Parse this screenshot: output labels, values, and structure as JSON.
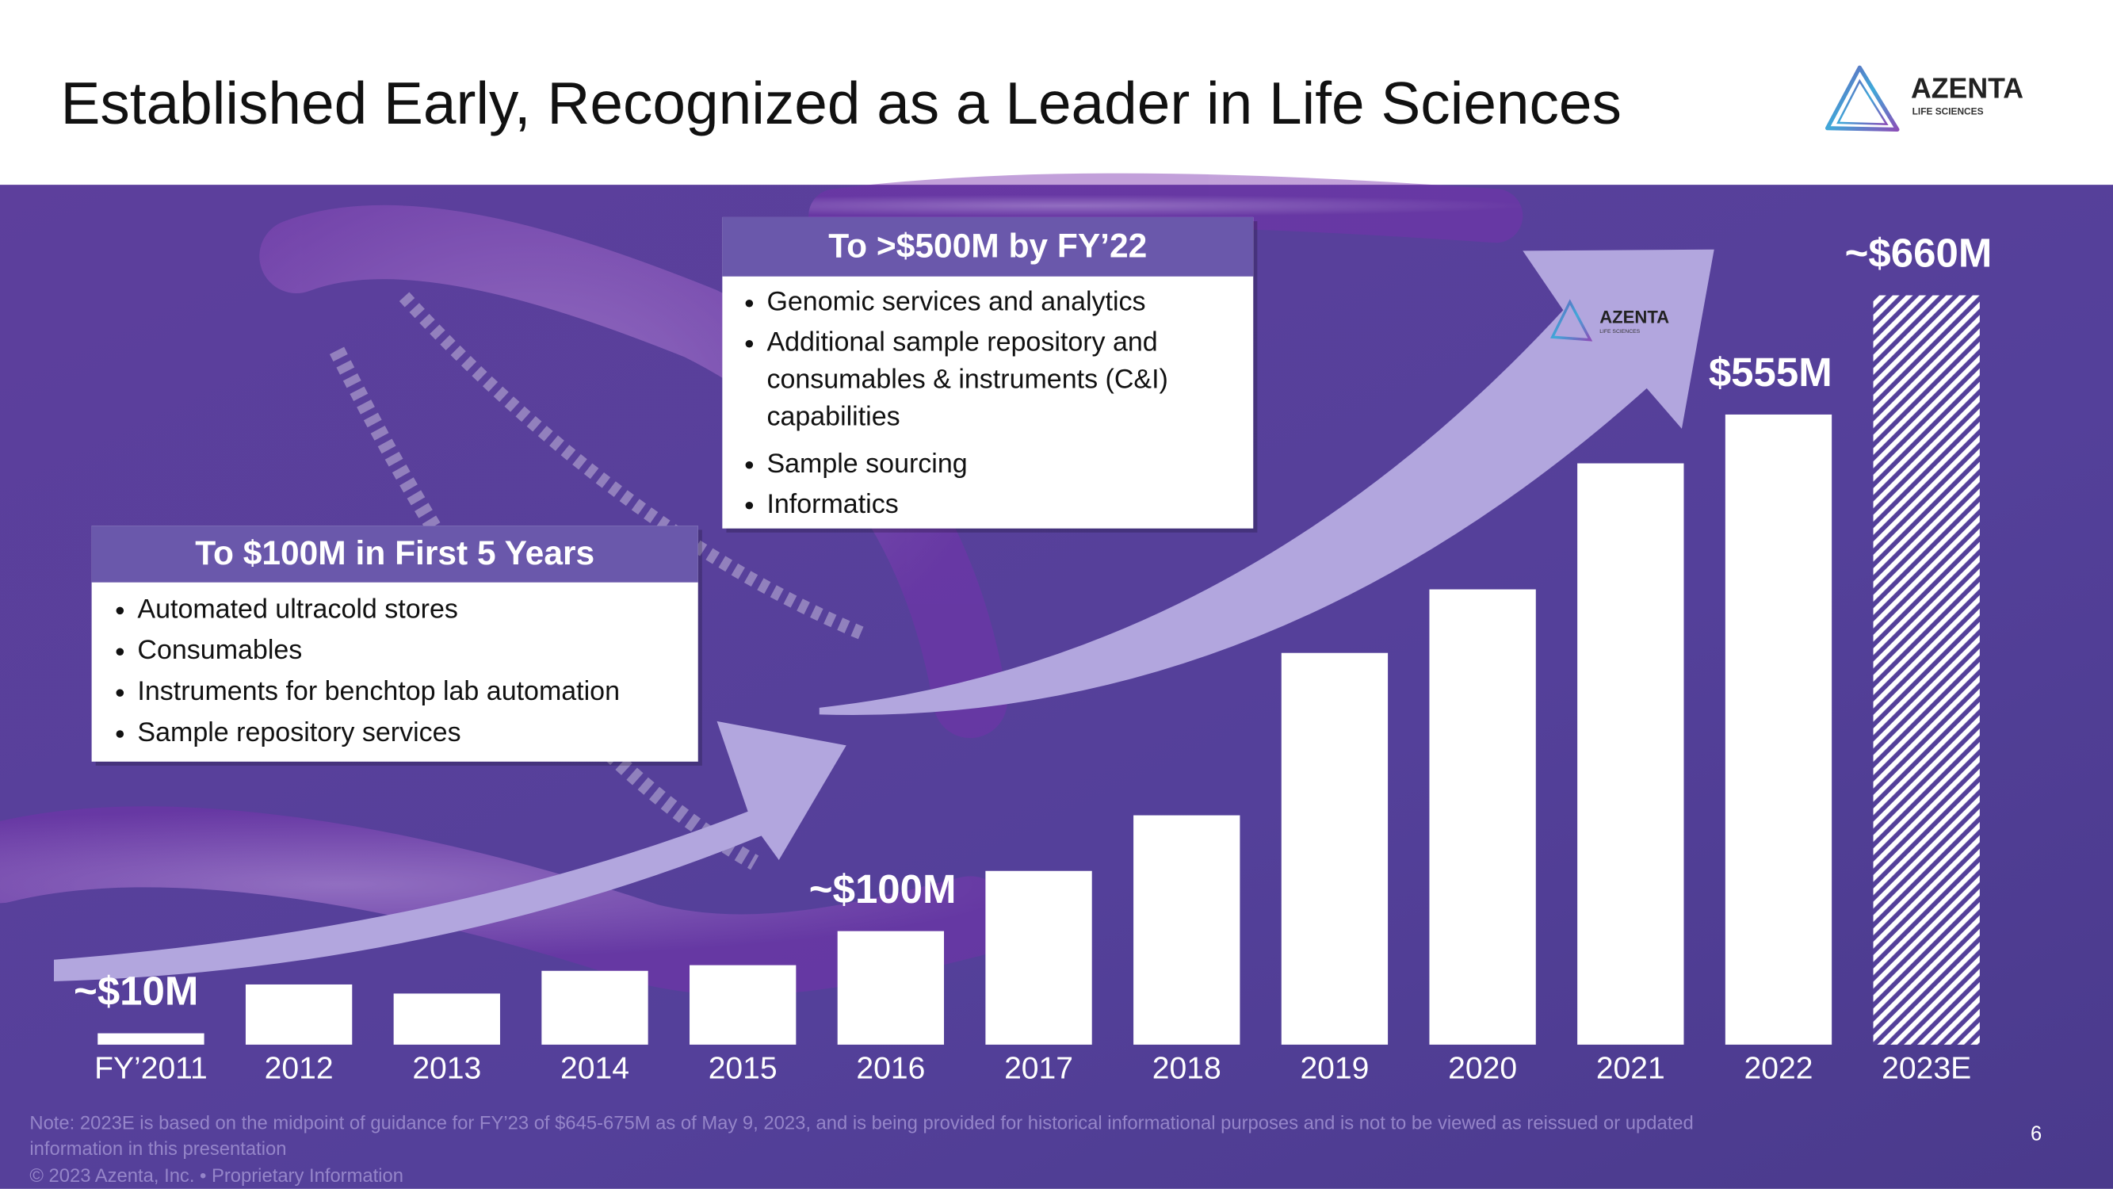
{
  "header": {
    "title": "Established Early, Recognized as a Leader in Life Sciences",
    "logo": {
      "name": "AZENTA",
      "tagline": "LIFE SCIENCES"
    }
  },
  "callouts": [
    {
      "heading": "To $100M in First 5 Years",
      "items": [
        [
          "Automated ultracold stores"
        ],
        [
          "Consumables"
        ],
        [
          "Instruments for benchtop lab automation"
        ],
        [
          "Sample repository services"
        ]
      ]
    },
    {
      "heading": "To >$500M by FY’22",
      "items": [
        [
          "Genomic services and analytics"
        ],
        [
          "Additional sample repository and",
          "consumables & instruments (C&I)",
          "capabilities"
        ],
        [
          "Sample sourcing"
        ],
        [
          "Informatics"
        ]
      ]
    }
  ],
  "chart_data": {
    "type": "bar",
    "categories": [
      "FY’2011",
      "2012",
      "2013",
      "2014",
      "2015",
      "2016",
      "2017",
      "2018",
      "2019",
      "2020",
      "2021",
      "2022",
      "2023E"
    ],
    "values": [
      10,
      53,
      45,
      65,
      70,
      100,
      153,
      202,
      345,
      401,
      512,
      555,
      660
    ],
    "value_labels": [
      "~$10M",
      null,
      null,
      null,
      null,
      "~$100M",
      null,
      null,
      null,
      null,
      null,
      "$555M",
      "~$660M"
    ],
    "hatched": [
      false,
      false,
      false,
      false,
      false,
      false,
      false,
      false,
      false,
      false,
      false,
      false,
      true
    ],
    "color": "#ffffff"
  },
  "footer": {
    "note": [
      "Note: 2023E is based on the midpoint of guidance for FY’23 of $645-675M as of May 9, 2023, and is being provided for historical informational purposes and is not to be viewed as reissued or updated",
      "information in this presentation"
    ],
    "copyright": "© 2023 Azenta, Inc. • Proprietary Information",
    "page": "6"
  }
}
